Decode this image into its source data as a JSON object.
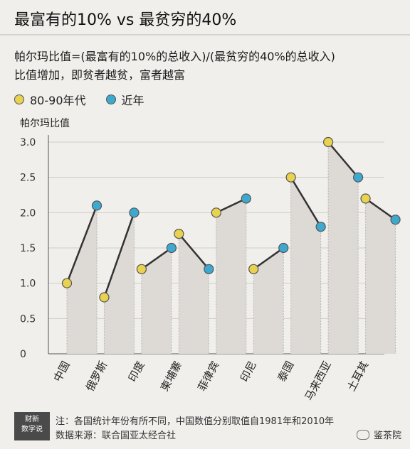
{
  "header": {
    "title": "最富有的10% vs 最贫穷的40%",
    "subtitle_line1": "帕尔玛比值=(最富有的10%的总收入)/(最贫穷的40%的总收入)",
    "subtitle_line2": "比值增加，即贫者越贫，富者越富"
  },
  "legend": {
    "items": [
      {
        "label": "80-90年代",
        "color": "#e8d24f"
      },
      {
        "label": "近年",
        "color": "#3ea9cf"
      }
    ]
  },
  "chart_data": {
    "type": "dot-line",
    "ylabel": "帕尔玛比值",
    "ylim": [
      0,
      3.0
    ],
    "yticks": [
      "3.0",
      "2.5",
      "2.0",
      "1.5",
      "1.0",
      "0.5",
      "0"
    ],
    "categories": [
      "中国",
      "俄罗斯",
      "印度",
      "柬埔寨",
      "菲律宾",
      "印尼",
      "泰国",
      "马来西亚",
      "土耳其"
    ],
    "series": [
      {
        "name": "80-90年代",
        "color": "#e8d24f",
        "values": [
          1.0,
          0.8,
          1.2,
          1.7,
          2.0,
          1.2,
          2.5,
          3.0,
          2.2
        ]
      },
      {
        "name": "近年",
        "color": "#3ea9cf",
        "values": [
          2.1,
          2.0,
          1.5,
          1.2,
          2.2,
          1.5,
          1.8,
          2.5,
          1.9
        ]
      }
    ],
    "grid": true
  },
  "footer": {
    "logo_line1": "财新",
    "logo_line2": "数字说",
    "note": "注：各国统计年份有所不同，中国数值分别取值自1981年和2010年",
    "source": "数据来源：联合国亚太经合社",
    "watermark": "鉴茶院"
  }
}
